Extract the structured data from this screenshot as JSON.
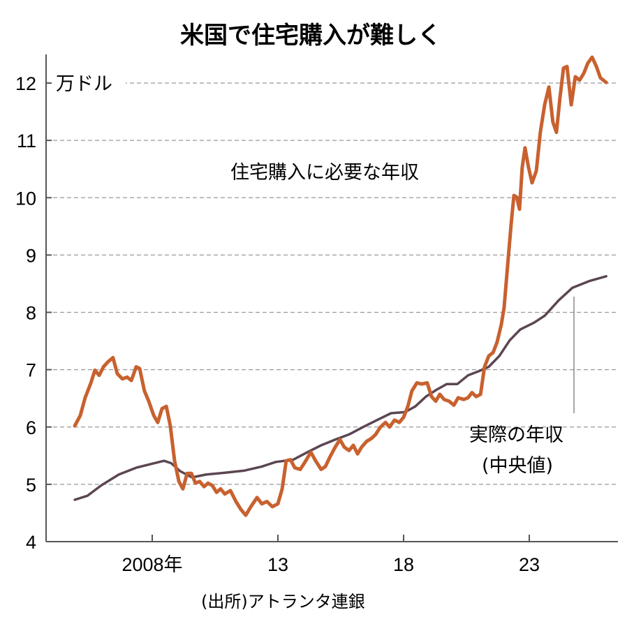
{
  "chart_data": {
    "type": "line",
    "title": "米国で住宅購入が難しく",
    "ylabel": "万ドル",
    "xlabel": "",
    "source": "(出所)アトランタ連銀",
    "ylim": [
      4,
      12.5
    ],
    "xlim": [
      2004.2,
      2026.6
    ],
    "yticks": [
      4,
      5,
      6,
      7,
      8,
      9,
      10,
      11,
      12
    ],
    "xticks": [
      {
        "value": 2008,
        "label": "2008年"
      },
      {
        "value": 2013,
        "label": "13"
      },
      {
        "value": 2018,
        "label": "18"
      },
      {
        "value": 2023,
        "label": "23"
      }
    ],
    "grid": true,
    "colors": {
      "required": "#c8612f",
      "actual": "#5b4652",
      "annotation": "#888888"
    },
    "series": [
      {
        "name": "住宅購入に必要な年収",
        "key": "required",
        "x": [
          2004.92,
          2005.14,
          2005.33,
          2005.56,
          2005.72,
          2005.89,
          2006.06,
          2006.25,
          2006.44,
          2006.61,
          2006.81,
          2007.0,
          2007.17,
          2007.36,
          2007.5,
          2007.69,
          2007.86,
          2008.06,
          2008.22,
          2008.39,
          2008.56,
          2008.72,
          2008.89,
          2009.06,
          2009.22,
          2009.39,
          2009.56,
          2009.72,
          2009.89,
          2010.06,
          2010.22,
          2010.39,
          2010.56,
          2010.72,
          2010.89,
          2011.11,
          2011.33,
          2011.53,
          2011.72,
          2011.94,
          2012.17,
          2012.36,
          2012.56,
          2012.78,
          2013.0,
          2013.17,
          2013.33,
          2013.5,
          2013.67,
          2013.89,
          2014.08,
          2014.31,
          2014.5,
          2014.72,
          2014.89,
          2015.06,
          2015.28,
          2015.47,
          2015.64,
          2015.83,
          2016.0,
          2016.17,
          2016.33,
          2016.53,
          2016.72,
          2016.89,
          2017.08,
          2017.28,
          2017.44,
          2017.64,
          2017.83,
          2018.0,
          2018.17,
          2018.33,
          2018.53,
          2018.72,
          2018.94,
          2019.11,
          2019.28,
          2019.44,
          2019.61,
          2019.81,
          2020.0,
          2020.17,
          2020.39,
          2020.56,
          2020.72,
          2020.89,
          2021.06,
          2021.22,
          2021.39,
          2021.56,
          2021.72,
          2021.89,
          2022.0,
          2022.14,
          2022.28,
          2022.39,
          2022.5,
          2022.61,
          2022.72,
          2022.83,
          2022.97,
          2023.11,
          2023.28,
          2023.44,
          2023.61,
          2023.78,
          2023.94,
          2024.08,
          2024.22,
          2024.36,
          2024.5,
          2024.67,
          2024.83,
          2025.0,
          2025.17,
          2025.33,
          2025.5,
          2025.67,
          2025.83,
          2026.06
        ],
        "y": [
          6.02,
          6.2,
          6.51,
          6.77,
          6.99,
          6.9,
          7.05,
          7.14,
          7.21,
          6.93,
          6.84,
          6.87,
          6.81,
          7.05,
          7.02,
          6.63,
          6.45,
          6.2,
          6.08,
          6.32,
          6.36,
          6.02,
          5.41,
          5.05,
          4.92,
          5.19,
          5.19,
          5.02,
          5.05,
          4.96,
          5.02,
          4.98,
          4.86,
          4.92,
          4.83,
          4.89,
          4.7,
          4.56,
          4.46,
          4.62,
          4.77,
          4.66,
          4.7,
          4.61,
          4.66,
          4.92,
          5.41,
          5.43,
          5.29,
          5.26,
          5.39,
          5.56,
          5.41,
          5.26,
          5.31,
          5.47,
          5.65,
          5.78,
          5.65,
          5.59,
          5.68,
          5.53,
          5.65,
          5.75,
          5.8,
          5.87,
          6.0,
          6.08,
          6.0,
          6.12,
          6.08,
          6.17,
          6.36,
          6.63,
          6.77,
          6.75,
          6.77,
          6.53,
          6.45,
          6.57,
          6.48,
          6.45,
          6.38,
          6.51,
          6.48,
          6.51,
          6.6,
          6.53,
          6.57,
          7.05,
          7.24,
          7.3,
          7.48,
          7.79,
          8.09,
          8.82,
          9.55,
          10.04,
          10.01,
          9.8,
          10.53,
          10.87,
          10.53,
          10.26,
          10.47,
          11.14,
          11.62,
          11.93,
          11.32,
          11.14,
          11.74,
          12.26,
          12.29,
          11.62,
          12.11,
          12.05,
          12.17,
          12.35,
          12.45,
          12.29,
          12.09,
          12.01
        ]
      },
      {
        "name": "実際の年収",
        "name2": "(中央値)",
        "key": "actual",
        "x": [
          2004.92,
          2005.42,
          2005.97,
          2006.67,
          2007.36,
          2007.92,
          2008.47,
          2008.75,
          2009.11,
          2009.58,
          2010.14,
          2010.83,
          2011.67,
          2012.36,
          2012.92,
          2013.61,
          2014.17,
          2014.72,
          2015.28,
          2015.83,
          2016.39,
          2016.94,
          2017.5,
          2018.06,
          2018.47,
          2018.89,
          2019.31,
          2019.72,
          2020.14,
          2020.56,
          2020.97,
          2021.39,
          2021.81,
          2022.22,
          2022.64,
          2023.19,
          2023.61,
          2024.17,
          2024.72,
          2025.42,
          2026.06
        ],
        "y": [
          4.73,
          4.8,
          4.98,
          5.17,
          5.29,
          5.35,
          5.41,
          5.37,
          5.23,
          5.12,
          5.17,
          5.2,
          5.24,
          5.31,
          5.39,
          5.43,
          5.56,
          5.68,
          5.78,
          5.87,
          6.0,
          6.12,
          6.24,
          6.26,
          6.36,
          6.53,
          6.65,
          6.75,
          6.75,
          6.9,
          6.97,
          7.05,
          7.24,
          7.51,
          7.7,
          7.82,
          7.94,
          8.21,
          8.43,
          8.55,
          8.63
        ]
      }
    ]
  }
}
